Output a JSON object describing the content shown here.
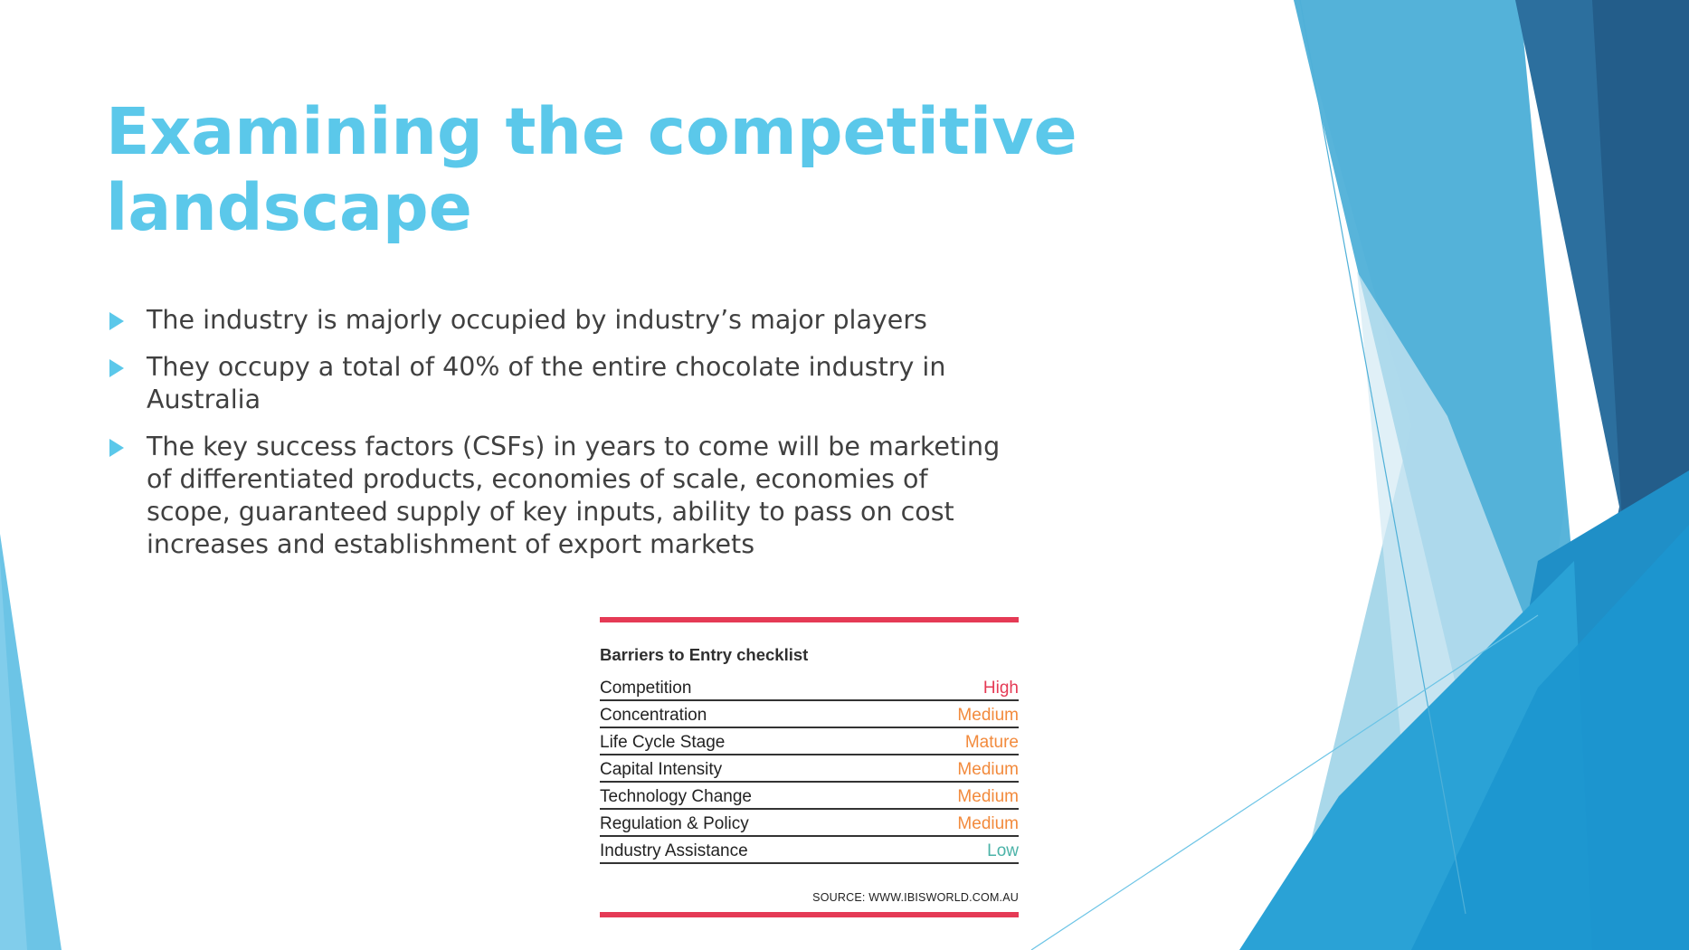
{
  "slide": {
    "title": "Examining the competitive landscape",
    "bullets": [
      "The industry is majorly occupied by industry’s major players",
      "They occupy a total of 40% of the entire chocolate industry in Australia",
      "The key success factors (CSFs) in years to come will be marketing of differentiated products, economies of scale, economies of scope, guaranteed supply of key inputs, ability to pass on cost increases and establishment of export markets"
    ],
    "bullet_icon": "triangle-right-icon"
  },
  "checklist": {
    "title": "Barriers to Entry checklist",
    "rows": [
      {
        "label": "Competition",
        "value": "High",
        "color": "#e53a55"
      },
      {
        "label": "Concentration",
        "value": "Medium",
        "color": "#f28a3c"
      },
      {
        "label": "Life Cycle Stage",
        "value": "Mature",
        "color": "#f28a3c"
      },
      {
        "label": "Capital Intensity",
        "value": "Medium",
        "color": "#f28a3c"
      },
      {
        "label": "Technology Change",
        "value": "Medium",
        "color": "#f28a3c"
      },
      {
        "label": "Regulation & Policy",
        "value": "Medium",
        "color": "#f28a3c"
      },
      {
        "label": "Industry Assistance",
        "value": "Low",
        "color": "#4bb3a8"
      }
    ],
    "source": "SOURCE: WWW.IBISWORLD.COM.AU",
    "rule_color": "#e53a55"
  },
  "theme": {
    "accent": "#5bc8ea",
    "text": "#404040"
  }
}
